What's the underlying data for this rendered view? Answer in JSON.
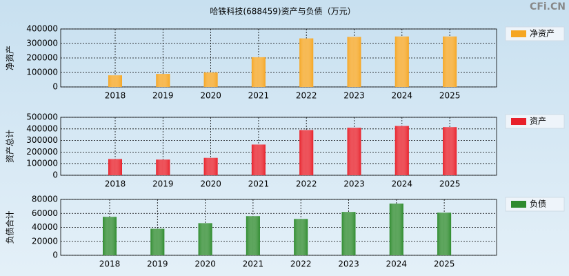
{
  "title": "哈铁科技(688459)资产与负债（万元）",
  "watermark": "CFi.CN",
  "chart_data": [
    {
      "type": "bar",
      "ylabel": "净资产",
      "categories": [
        "2018",
        "2019",
        "2020",
        "2021",
        "2022",
        "2023",
        "2024",
        "2025"
      ],
      "series": [
        {
          "name": "净资产",
          "color": "#f5a623",
          "values": [
            80000,
            90000,
            100000,
            205000,
            335000,
            345000,
            348000,
            348000
          ]
        }
      ],
      "ylim": [
        0,
        400000
      ],
      "yticks": [
        0,
        100000,
        200000,
        300000,
        400000
      ],
      "grid": true
    },
    {
      "type": "bar",
      "ylabel": "资产总计",
      "categories": [
        "2018",
        "2019",
        "2020",
        "2021",
        "2022",
        "2023",
        "2024",
        "2025"
      ],
      "series": [
        {
          "name": "资产",
          "color": "#e8202a",
          "values": [
            140000,
            135000,
            150000,
            265000,
            390000,
            410000,
            425000,
            415000
          ]
        }
      ],
      "ylim": [
        0,
        500000
      ],
      "yticks": [
        0,
        100000,
        200000,
        300000,
        400000,
        500000
      ],
      "grid": true
    },
    {
      "type": "bar",
      "ylabel": "负债合计",
      "categories": [
        "2018",
        "2019",
        "2020",
        "2021",
        "2022",
        "2023",
        "2024",
        "2025"
      ],
      "series": [
        {
          "name": "负债",
          "color": "#2e8b2e",
          "values": [
            55000,
            38000,
            46000,
            56000,
            52000,
            62000,
            74000,
            61000
          ]
        }
      ],
      "ylim": [
        0,
        80000
      ],
      "yticks": [
        0,
        20000,
        40000,
        60000,
        80000
      ],
      "grid": true
    }
  ]
}
